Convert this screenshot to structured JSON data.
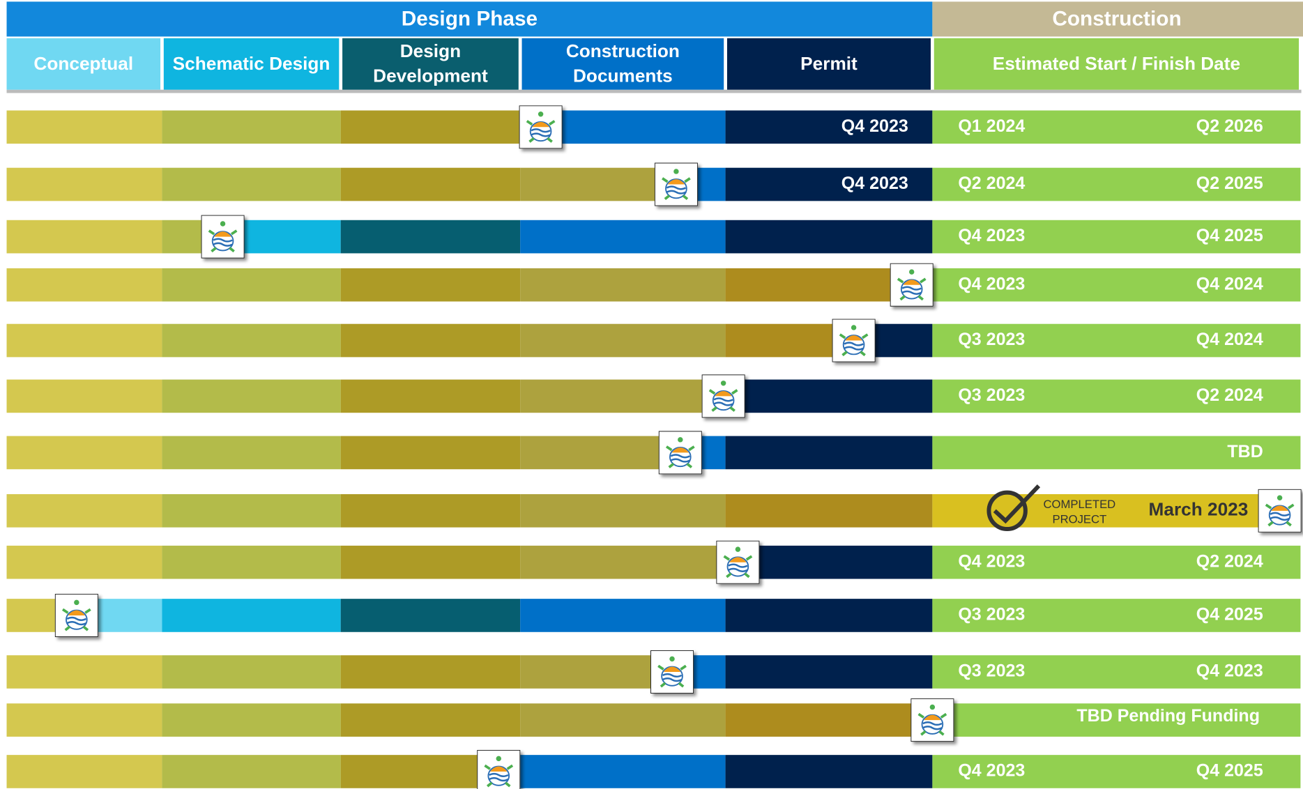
{
  "header": {
    "design_phase": "Design Phase",
    "construction": "Construction"
  },
  "columns": [
    [
      "Conceptual"
    ],
    [
      "Schematic Design"
    ],
    [
      "Design",
      "Development"
    ],
    [
      "Construction",
      "Documents"
    ],
    [
      "Permit"
    ],
    [
      "Estimated Start / Finish Date"
    ]
  ],
  "rows": [
    {
      "progress": 3.1,
      "permit": "Q4 2023",
      "start": "Q1 2024",
      "finish": "Q2 2026"
    },
    {
      "progress": 3.76,
      "permit": "Q4 2023",
      "start": "Q2 2024",
      "finish": "Q2 2025"
    },
    {
      "progress": 1.34,
      "start": "Q4 2023",
      "finish": "Q4 2025"
    },
    {
      "progress": 4.9,
      "start": "Q4 2023",
      "finish": "Q4 2024"
    },
    {
      "progress": 4.62,
      "start": "Q3 2023",
      "finish": "Q4 2024"
    },
    {
      "progress": 3.99,
      "start": "Q3 2023",
      "finish": "Q2 2024"
    },
    {
      "progress": 3.78,
      "finish": "TBD"
    },
    {
      "progress": 6,
      "status": [
        "COMPLETED",
        "PROJECT"
      ],
      "date": "March 2023"
    },
    {
      "progress": 4.06,
      "start": "Q4 2023",
      "finish": "Q2 2024"
    },
    {
      "progress": 0.45,
      "start": "Q3 2023",
      "finish": "Q4 2025"
    },
    {
      "progress": 3.74,
      "start": "Q3 2023",
      "finish": "Q4 2023"
    },
    {
      "progress": 5,
      "note": "TBD  Pending Funding"
    },
    {
      "progress": 2.88,
      "start": "Q4 2023",
      "finish": "Q4 2025"
    }
  ]
}
